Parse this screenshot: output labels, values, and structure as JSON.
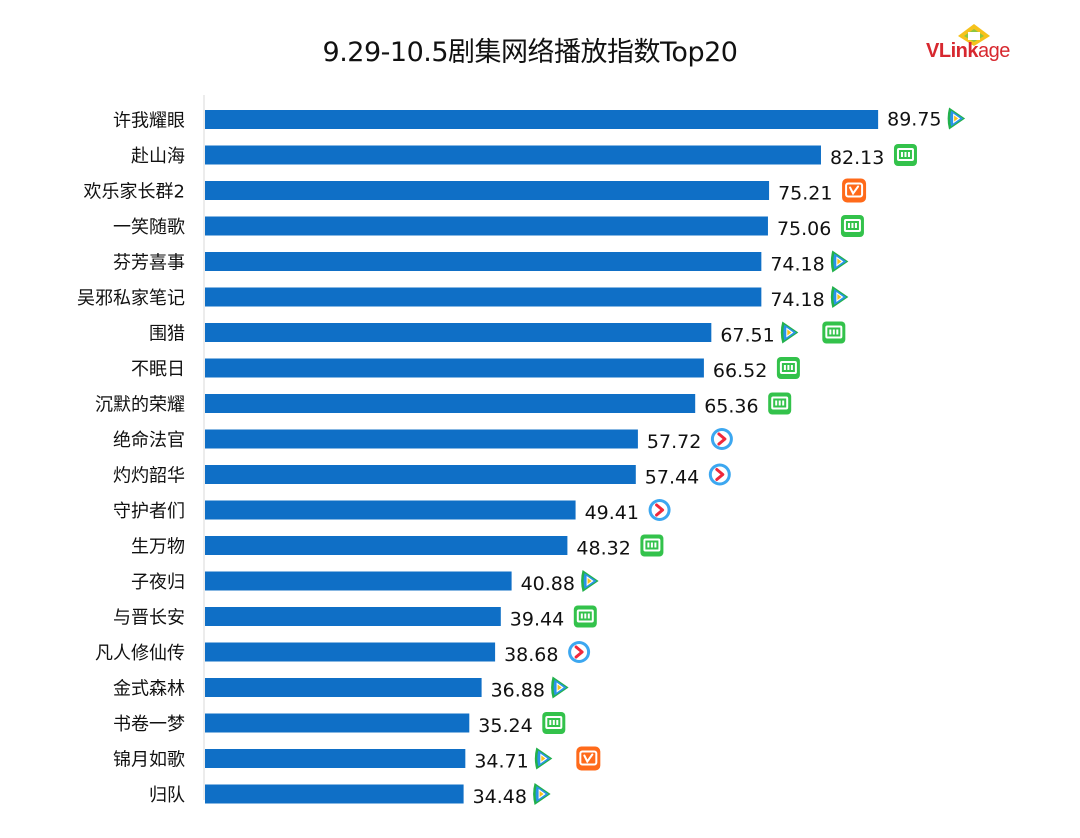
{
  "logo": {
    "text": "VLinkage"
  },
  "colors": {
    "bar": "#0f6fc6",
    "tencent_green": "#22b14c",
    "tencent_blue": "#2a93e8",
    "iqiyi": "#33c24b",
    "mango": "#ff6a1a",
    "youku_blue": "#3ca7f0",
    "youku_red": "#f0283c"
  },
  "chart_data": {
    "type": "bar",
    "orientation": "horizontal",
    "title": "9.29-10.5剧集网络播放指数Top20",
    "xlabel": "",
    "ylabel": "",
    "xlim": [
      0,
      100
    ],
    "grid": false,
    "categories": [
      "许我耀眼",
      "赴山海",
      "欢乐家长群2",
      "一笑随歌",
      "芬芳喜事",
      "吴邪私家笔记",
      "围猎",
      "不眠日",
      "沉默的荣耀",
      "绝命法官",
      "灼灼韶华",
      "守护者们",
      "生万物",
      "子夜归",
      "与晋长安",
      "凡人修仙传",
      "金式森林",
      "书卷一梦",
      "锦月如歌",
      "归队"
    ],
    "values": [
      89.75,
      82.13,
      75.21,
      75.06,
      74.18,
      74.18,
      67.51,
      66.52,
      65.36,
      57.72,
      57.44,
      49.41,
      48.32,
      40.88,
      39.44,
      38.68,
      36.88,
      35.24,
      34.71,
      34.48
    ],
    "value_labels": [
      "89.75",
      "82.13",
      "75.21",
      "75.06",
      "74.18",
      "74.18",
      "67.51",
      "66.52",
      "65.36",
      "57.72",
      "57.44",
      "49.41",
      "48.32",
      "40.88",
      "39.44",
      "38.68",
      "36.88",
      "35.24",
      "34.71",
      "34.48"
    ],
    "platforms": [
      [
        "tencent-video"
      ],
      [
        "iqiyi"
      ],
      [
        "mango-tv"
      ],
      [
        "iqiyi"
      ],
      [
        "tencent-video"
      ],
      [
        "tencent-video"
      ],
      [
        "tencent-video",
        "iqiyi"
      ],
      [
        "iqiyi"
      ],
      [
        "iqiyi"
      ],
      [
        "youku"
      ],
      [
        "youku"
      ],
      [
        "youku"
      ],
      [
        "iqiyi"
      ],
      [
        "tencent-video"
      ],
      [
        "iqiyi"
      ],
      [
        "youku"
      ],
      [
        "tencent-video"
      ],
      [
        "iqiyi"
      ],
      [
        "tencent-video",
        "mango-tv"
      ],
      [
        "tencent-video"
      ]
    ]
  }
}
